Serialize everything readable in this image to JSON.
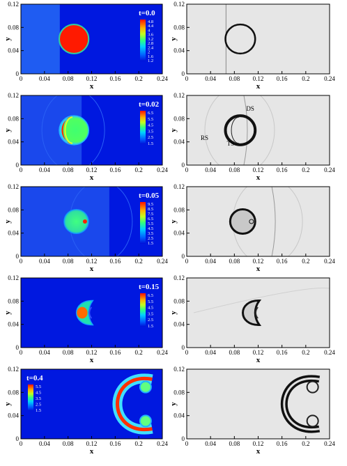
{
  "chart_data": {
    "type": "heatmap",
    "description_axes": {
      "x_ticks": [
        "0",
        "0.04",
        "0.08",
        "0.12",
        "0.16",
        "0.2",
        "0.24"
      ],
      "y_ticks": [
        "0",
        "0.04",
        "0.08",
        "0.12"
      ],
      "xlabel": "x",
      "ylabel": "y",
      "xlim": [
        0,
        0.24
      ],
      "ylim": [
        0,
        0.12
      ]
    },
    "panels": [
      {
        "time_label": "t=0.0",
        "legend_levels": [
          "4.8",
          "4.4",
          "4",
          "3.6",
          "3.2",
          "2.8",
          "2.4",
          "2",
          "1.6",
          "1.2"
        ],
        "legend_position": "top-right",
        "shock_x": 0.066,
        "bubble": {
          "shape": "circle",
          "cx": 0.09,
          "cy": 0.06,
          "r": 0.025
        },
        "annotations": []
      },
      {
        "time_label": "t=0.02",
        "legend_levels": [
          "6.5",
          "5.5",
          "4.5",
          "3.5",
          "2.5",
          "1.5"
        ],
        "legend_position": "top-right",
        "shock_x": 0.103,
        "bubble": {
          "shape": "circle",
          "cx": 0.09,
          "cy": 0.06,
          "r": 0.025
        },
        "annotations": [
          "DS",
          "RS",
          "TS"
        ]
      },
      {
        "time_label": "t=0.05",
        "legend_levels": [
          "9.5",
          "8.5",
          "7.5",
          "6.5",
          "5.5",
          "4.5",
          "3.5",
          "2.5",
          "1.5"
        ],
        "legend_position": "top-right",
        "shock_x": 0.15,
        "bubble": {
          "shape": "circle",
          "cx": 0.094,
          "cy": 0.06,
          "r": 0.021
        },
        "annotations": []
      },
      {
        "time_label": "t=0.15",
        "legend_levels": [
          "6.5",
          "5.5",
          "4.5",
          "3.5",
          "2.5",
          "1.5"
        ],
        "legend_position": "top-right",
        "shock_x": null,
        "bubble": {
          "shape": "cap",
          "cx": 0.115,
          "cy": 0.06,
          "r": 0.02
        },
        "annotations": []
      },
      {
        "time_label": "t=0.4",
        "legend_levels": [
          "5.5",
          "4.5",
          "3.5",
          "2.5",
          "1.5"
        ],
        "legend_position": "top-left",
        "shock_x": null,
        "bubble": {
          "shape": "c-vortex",
          "cx": 0.198,
          "cy": 0.06,
          "r": 0.045
        },
        "annotations": []
      }
    ]
  }
}
